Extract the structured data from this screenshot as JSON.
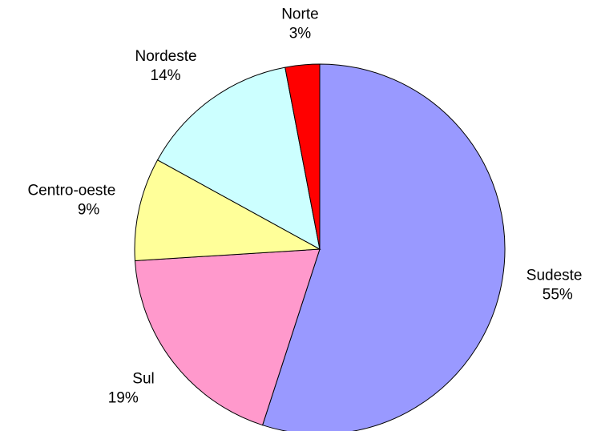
{
  "chart_data": {
    "type": "pie",
    "categories": [
      "Sudeste",
      "Sul",
      "Centro-oeste",
      "Nordeste",
      "Norte"
    ],
    "values": [
      55,
      19,
      9,
      14,
      3
    ],
    "value_labels": [
      "55%",
      "19%",
      "9%",
      "14%",
      "3%"
    ],
    "colors": [
      "#9999ff",
      "#ff99cc",
      "#ffff99",
      "#ccffff",
      "#ff0000"
    ]
  }
}
